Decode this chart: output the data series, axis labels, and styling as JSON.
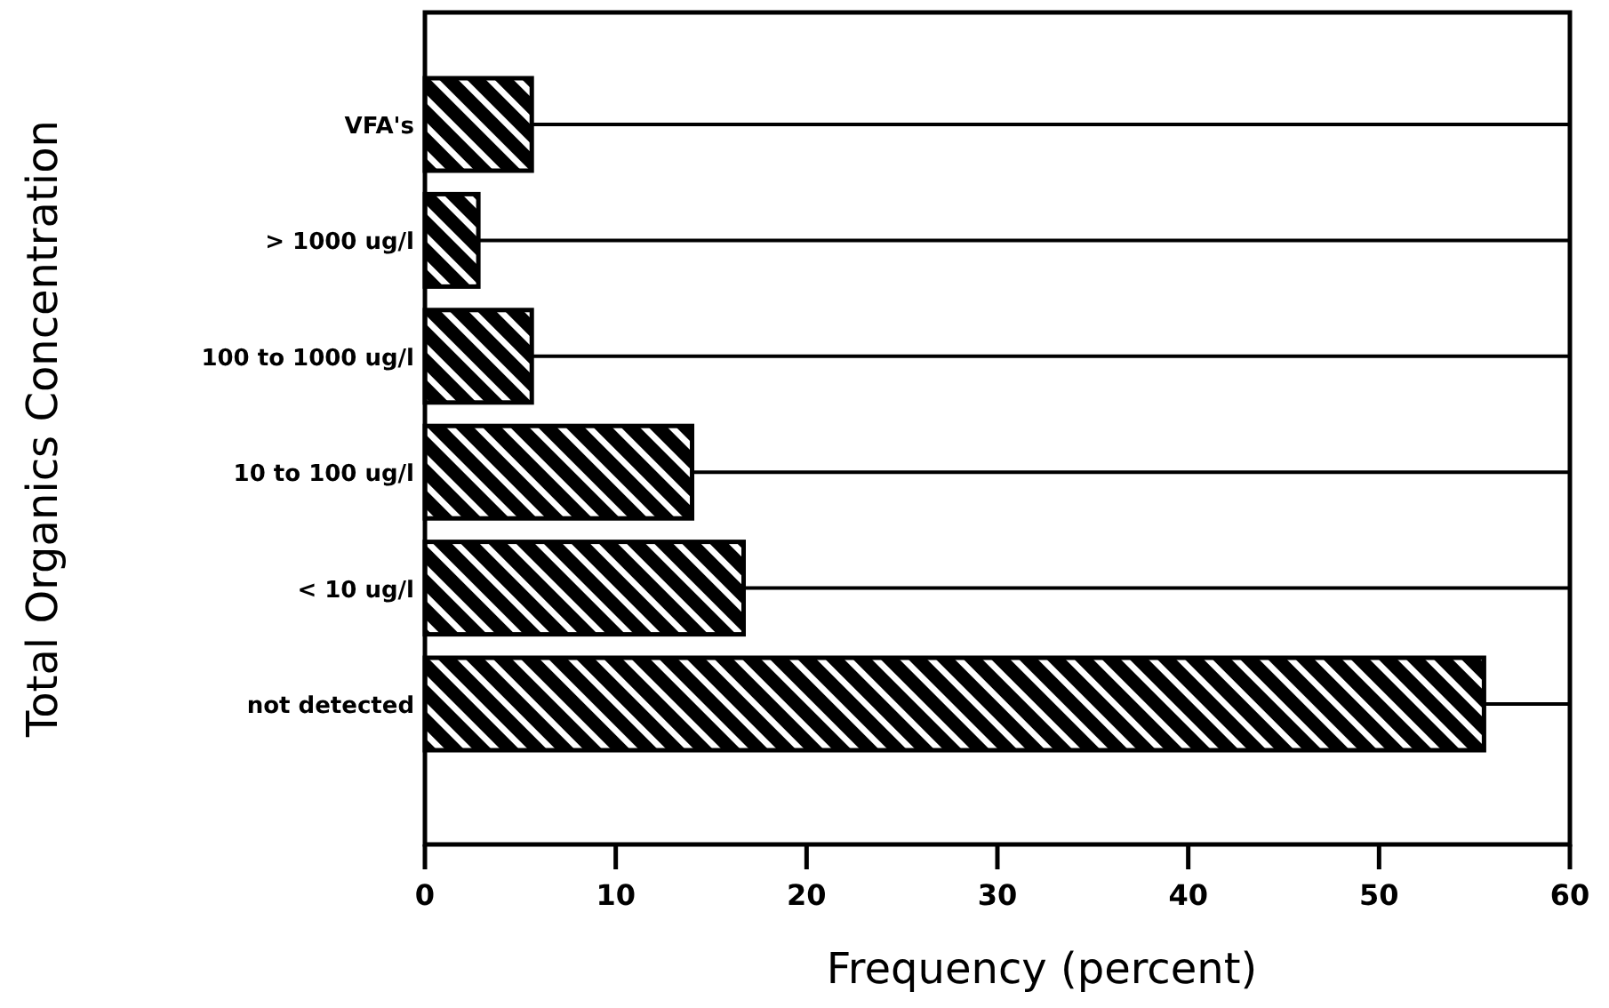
{
  "chart_data": {
    "type": "bar",
    "orientation": "horizontal",
    "xlabel": "Frequency (percent)",
    "ylabel": "Total Organics Concentration",
    "categories": [
      "VFA's",
      "> 1000 ug/l",
      "100 to 1000 ug/l",
      "10 to 100 ug/l",
      "< 10 ug/l",
      "not detected"
    ],
    "values": [
      5.6,
      2.8,
      5.6,
      14,
      16.7,
      55.5
    ],
    "color": "#000000",
    "xlim": [
      0,
      60
    ],
    "xticks": [
      0,
      10,
      20,
      30,
      40,
      50,
      60
    ],
    "grid": "y"
  }
}
